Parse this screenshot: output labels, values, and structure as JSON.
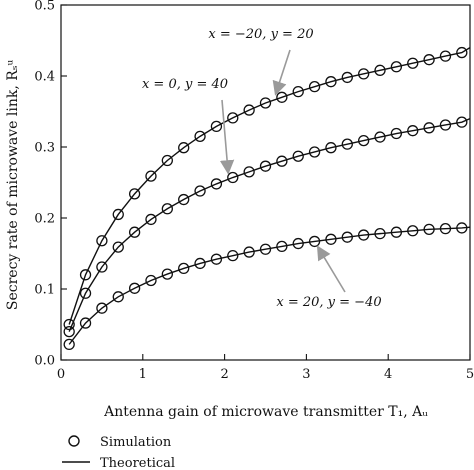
{
  "chart_data": {
    "type": "line",
    "xlabel": "Antenna gain of microwave transmitter T₁, Aᵤ",
    "ylabel": "Secrecy rate of microwave link, Rₛᵘ",
    "xlim": [
      0,
      5
    ],
    "ylim": [
      0,
      0.5
    ],
    "xticks": [
      0,
      1,
      2,
      3,
      4,
      5
    ],
    "yticks": [
      0.0,
      0.1,
      0.2,
      0.3,
      0.4,
      0.5
    ],
    "xtick_labels": [
      "0",
      "1",
      "2",
      "3",
      "4",
      "5"
    ],
    "ytick_labels": [
      "0.0",
      "0.1",
      "0.2",
      "0.3",
      "0.4",
      "0.5"
    ],
    "grid": false,
    "legend": {
      "position": "bottom-left-below",
      "entries": [
        {
          "label": "Simulation",
          "marker": "circle"
        },
        {
          "label": "Theoretical",
          "marker": "line"
        }
      ]
    },
    "x": [
      0.1,
      0.3,
      0.5,
      0.7,
      0.9,
      1.1,
      1.3,
      1.5,
      1.7,
      1.9,
      2.1,
      2.3,
      2.5,
      2.7,
      2.9,
      3.1,
      3.3,
      3.5,
      3.7,
      3.9,
      4.1,
      4.3,
      4.5,
      4.7,
      4.9
    ],
    "series": [
      {
        "annotation": "x = −20, y = 20",
        "values": [
          0.05,
          0.12,
          0.168,
          0.205,
          0.234,
          0.259,
          0.281,
          0.299,
          0.315,
          0.329,
          0.341,
          0.352,
          0.362,
          0.37,
          0.378,
          0.385,
          0.392,
          0.398,
          0.403,
          0.408,
          0.413,
          0.418,
          0.423,
          0.428,
          0.433
        ],
        "end_value": 0.44
      },
      {
        "annotation": "x = 0, y = 40",
        "values": [
          0.04,
          0.094,
          0.131,
          0.159,
          0.18,
          0.198,
          0.213,
          0.226,
          0.238,
          0.248,
          0.257,
          0.265,
          0.273,
          0.28,
          0.287,
          0.293,
          0.299,
          0.304,
          0.309,
          0.314,
          0.319,
          0.323,
          0.327,
          0.331,
          0.335
        ],
        "end_value": 0.34
      },
      {
        "annotation": "x = 20, y = −40",
        "values": [
          0.022,
          0.052,
          0.073,
          0.089,
          0.101,
          0.112,
          0.121,
          0.129,
          0.136,
          0.142,
          0.147,
          0.152,
          0.156,
          0.16,
          0.164,
          0.167,
          0.17,
          0.173,
          0.176,
          0.178,
          0.18,
          0.182,
          0.184,
          0.185,
          0.186
        ],
        "end_value": 0.187
      }
    ],
    "annotations": [
      {
        "text": "x = −20, y = 20",
        "series": 0,
        "arrow_to_x": 2.6
      },
      {
        "text": "x = 0, y = 40",
        "series": 1,
        "arrow_to_x": 2.05
      },
      {
        "text": "x = 20, y = −40",
        "series": 2,
        "arrow_to_x": 3.1
      }
    ]
  }
}
